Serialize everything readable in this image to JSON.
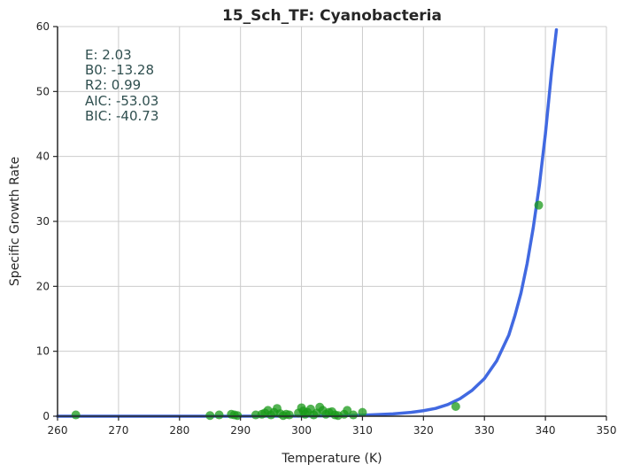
{
  "chart_data": {
    "type": "scatter",
    "title": "15_Sch_TF: Cyanobacteria",
    "xlabel": "Temperature (K)",
    "ylabel": "Specific Growth Rate",
    "xlim": [
      260,
      350
    ],
    "ylim": [
      0,
      60
    ],
    "x_ticks": [
      260,
      270,
      280,
      290,
      300,
      310,
      320,
      330,
      340,
      350
    ],
    "y_ticks": [
      0,
      10,
      20,
      30,
      40,
      50,
      60
    ],
    "grid": true,
    "colors": {
      "points": "#1a9a1a",
      "fit_line": "#4169e1",
      "stats_text": "#2f4f4f",
      "grid": "#cccccc"
    },
    "annotations": [
      "E:  2.03",
      "B0:  -13.28",
      "R2:  0.99",
      "AIC: -53.03",
      "BIC: -40.73"
    ],
    "series": [
      {
        "type": "scatter",
        "x": [
          263,
          285,
          286.5,
          288.5,
          289,
          289.5,
          292.5,
          293.5,
          294,
          294.5,
          295,
          295.5,
          296,
          296.5,
          297,
          297.5,
          298,
          299.5,
          300,
          300.3,
          300.6,
          301,
          301.5,
          302,
          302.5,
          303,
          303.5,
          304,
          304.5,
          305,
          305.5,
          306,
          307,
          307.5,
          308.5,
          310,
          325.3,
          338.9
        ],
        "y": [
          0.2,
          0.1,
          0.2,
          0.3,
          0.2,
          0.1,
          0.2,
          0.3,
          0.5,
          0.9,
          0.2,
          0.6,
          1.2,
          0.4,
          0.1,
          0.3,
          0.2,
          0.5,
          1.3,
          0.8,
          0.3,
          0.6,
          1.1,
          0.2,
          0.5,
          1.4,
          0.9,
          0.3,
          0.6,
          0.7,
          0.2,
          0.1,
          0.3,
          0.9,
          0.2,
          0.6,
          1.5,
          32.5
        ]
      },
      {
        "type": "line",
        "x": [
          260,
          280,
          300,
          305,
          310,
          315,
          318,
          320,
          322,
          324,
          326,
          328,
          330,
          332,
          334,
          335,
          336,
          337,
          338,
          339,
          340,
          341,
          341.8
        ],
        "y": [
          0,
          0,
          0.02,
          0.06,
          0.15,
          0.35,
          0.6,
          0.85,
          1.2,
          1.8,
          2.7,
          4.0,
          5.8,
          8.5,
          12.5,
          15.5,
          19.0,
          23.5,
          29.0,
          35.5,
          43.5,
          53.0,
          59.5
        ]
      }
    ]
  }
}
